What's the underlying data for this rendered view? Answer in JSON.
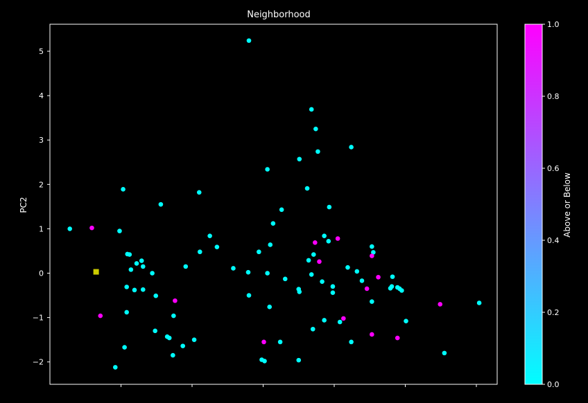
{
  "chart_data": {
    "type": "scatter",
    "title": "Neighborhood",
    "xlabel": "",
    "ylabel": "PC2",
    "ylim": [
      -2.5,
      5.6
    ],
    "xlim": [
      0,
      9
    ],
    "yticks": [
      -2,
      -1,
      0,
      1,
      2,
      3,
      4,
      5
    ],
    "ytick_labels": [
      "−2",
      "−1",
      "0",
      "1",
      "2",
      "3",
      "4",
      "5"
    ],
    "xticks": [
      1,
      2,
      3,
      4,
      5,
      6
    ],
    "grid": false,
    "colorbar": {
      "label": "Above or Below",
      "range": [
        0,
        1
      ],
      "ticks": [
        0.0,
        0.2,
        0.4,
        0.6,
        0.8,
        1.0
      ],
      "tick_labels": [
        "0.0",
        "0.2",
        "0.4",
        "0.6",
        "0.8",
        "1.0"
      ],
      "colormap": [
        "#00ffff",
        "#ff00ff"
      ]
    },
    "points": [
      {
        "x": 0.28,
        "y": 1.0,
        "c": 0
      },
      {
        "x": 0.92,
        "y": -2.12,
        "c": 0
      },
      {
        "x": 0.98,
        "y": 0.95,
        "c": 0
      },
      {
        "x": 1.03,
        "y": 1.89,
        "c": 0
      },
      {
        "x": 1.05,
        "y": -1.67,
        "c": 0
      },
      {
        "x": 1.08,
        "y": -0.31,
        "c": 0
      },
      {
        "x": 1.08,
        "y": -0.88,
        "c": 0
      },
      {
        "x": 1.09,
        "y": 0.43,
        "c": 0
      },
      {
        "x": 1.12,
        "y": 0.42,
        "c": 0
      },
      {
        "x": 1.14,
        "y": 0.08,
        "c": 0
      },
      {
        "x": 1.19,
        "y": -0.38,
        "c": 0
      },
      {
        "x": 1.22,
        "y": 0.22,
        "c": 0
      },
      {
        "x": 1.29,
        "y": 0.28,
        "c": 0
      },
      {
        "x": 1.31,
        "y": 0.15,
        "c": 0
      },
      {
        "x": 1.31,
        "y": -0.37,
        "c": 0
      },
      {
        "x": 1.44,
        "y": 0.0,
        "c": 0
      },
      {
        "x": 1.49,
        "y": -0.51,
        "c": 0
      },
      {
        "x": 1.48,
        "y": -1.3,
        "c": 0
      },
      {
        "x": 1.56,
        "y": 1.55,
        "c": 0
      },
      {
        "x": 1.65,
        "y": -1.43,
        "c": 0
      },
      {
        "x": 1.68,
        "y": -1.46,
        "c": 0
      },
      {
        "x": 1.74,
        "y": -0.96,
        "c": 0
      },
      {
        "x": 1.73,
        "y": -1.85,
        "c": 0
      },
      {
        "x": 1.87,
        "y": -1.64,
        "c": 0
      },
      {
        "x": 1.91,
        "y": 0.15,
        "c": 0
      },
      {
        "x": 2.03,
        "y": -1.5,
        "c": 0
      },
      {
        "x": 2.11,
        "y": 0.48,
        "c": 0
      },
      {
        "x": 2.1,
        "y": 1.82,
        "c": 0
      },
      {
        "x": 2.25,
        "y": 0.84,
        "c": 0
      },
      {
        "x": 2.35,
        "y": 0.59,
        "c": 0
      },
      {
        "x": 2.58,
        "y": 0.11,
        "c": 0
      },
      {
        "x": 2.79,
        "y": 0.02,
        "c": 0
      },
      {
        "x": 2.8,
        "y": -0.5,
        "c": 0
      },
      {
        "x": 2.8,
        "y": 5.24,
        "c": 0
      },
      {
        "x": 2.94,
        "y": 0.48,
        "c": 0
      },
      {
        "x": 2.98,
        "y": -1.95,
        "c": 0
      },
      {
        "x": 3.02,
        "y": -1.98,
        "c": 0
      },
      {
        "x": 3.06,
        "y": 0.0,
        "c": 0
      },
      {
        "x": 3.06,
        "y": 2.34,
        "c": 0
      },
      {
        "x": 3.1,
        "y": 0.64,
        "c": 0
      },
      {
        "x": 3.14,
        "y": 1.12,
        "c": 0
      },
      {
        "x": 3.09,
        "y": -0.76,
        "c": 0
      },
      {
        "x": 3.24,
        "y": -1.55,
        "c": 0
      },
      {
        "x": 3.26,
        "y": 1.43,
        "c": 0
      },
      {
        "x": 3.31,
        "y": -0.13,
        "c": 0
      },
      {
        "x": 3.5,
        "y": -0.36,
        "c": 0
      },
      {
        "x": 3.51,
        "y": -0.42,
        "c": 0
      },
      {
        "x": 3.5,
        "y": -1.96,
        "c": 0
      },
      {
        "x": 3.51,
        "y": 2.57,
        "c": 0
      },
      {
        "x": 3.62,
        "y": 1.91,
        "c": 0
      },
      {
        "x": 3.64,
        "y": 0.29,
        "c": 0
      },
      {
        "x": 3.68,
        "y": -0.03,
        "c": 0
      },
      {
        "x": 3.68,
        "y": 3.69,
        "c": 0
      },
      {
        "x": 3.71,
        "y": 0.42,
        "c": 0
      },
      {
        "x": 3.7,
        "y": -1.26,
        "c": 0
      },
      {
        "x": 3.74,
        "y": 3.25,
        "c": 0
      },
      {
        "x": 3.77,
        "y": 2.74,
        "c": 0
      },
      {
        "x": 3.83,
        "y": -0.19,
        "c": 0
      },
      {
        "x": 3.86,
        "y": 0.84,
        "c": 0
      },
      {
        "x": 3.86,
        "y": -1.06,
        "c": 0
      },
      {
        "x": 3.92,
        "y": 0.72,
        "c": 0
      },
      {
        "x": 3.93,
        "y": 1.49,
        "c": 0
      },
      {
        "x": 3.98,
        "y": -0.44,
        "c": 0
      },
      {
        "x": 3.98,
        "y": -0.3,
        "c": 0
      },
      {
        "x": 4.08,
        "y": -1.1,
        "c": 0
      },
      {
        "x": 4.19,
        "y": 0.13,
        "c": 0
      },
      {
        "x": 4.24,
        "y": -1.55,
        "c": 0
      },
      {
        "x": 4.24,
        "y": 2.84,
        "c": 0
      },
      {
        "x": 4.32,
        "y": 0.04,
        "c": 0
      },
      {
        "x": 4.39,
        "y": -0.17,
        "c": 0
      },
      {
        "x": 4.53,
        "y": 0.6,
        "c": 0
      },
      {
        "x": 4.55,
        "y": 0.47,
        "c": 0
      },
      {
        "x": 4.53,
        "y": -0.64,
        "c": 0
      },
      {
        "x": 4.79,
        "y": -0.34,
        "c": 0
      },
      {
        "x": 4.81,
        "y": -0.3,
        "c": 0
      },
      {
        "x": 4.82,
        "y": -0.08,
        "c": 0
      },
      {
        "x": 4.89,
        "y": -0.32,
        "c": 0
      },
      {
        "x": 4.92,
        "y": -0.35,
        "c": 0
      },
      {
        "x": 4.95,
        "y": -0.39,
        "c": 0
      },
      {
        "x": 5.01,
        "y": -1.08,
        "c": 0
      },
      {
        "x": 5.55,
        "y": -1.8,
        "c": 0
      },
      {
        "x": 6.04,
        "y": -0.67,
        "c": 0
      },
      {
        "x": 0.59,
        "y": 1.02,
        "c": 1
      },
      {
        "x": 0.71,
        "y": -0.96,
        "c": 1
      },
      {
        "x": 1.76,
        "y": -0.62,
        "c": 1
      },
      {
        "x": 3.01,
        "y": -1.55,
        "c": 1
      },
      {
        "x": 3.73,
        "y": 0.69,
        "c": 1
      },
      {
        "x": 3.79,
        "y": 0.26,
        "c": 1
      },
      {
        "x": 4.05,
        "y": 0.78,
        "c": 1
      },
      {
        "x": 4.13,
        "y": -1.02,
        "c": 1
      },
      {
        "x": 4.46,
        "y": -0.35,
        "c": 1
      },
      {
        "x": 4.53,
        "y": 0.39,
        "c": 1
      },
      {
        "x": 4.53,
        "y": -1.38,
        "c": 1
      },
      {
        "x": 4.62,
        "y": -0.09,
        "c": 1
      },
      {
        "x": 4.89,
        "y": -1.46,
        "c": 1
      },
      {
        "x": 5.49,
        "y": -0.7,
        "c": 1
      }
    ],
    "highlight": {
      "x": 0.65,
      "y": 0.03,
      "color": "#cccc00",
      "marker": "square"
    }
  }
}
